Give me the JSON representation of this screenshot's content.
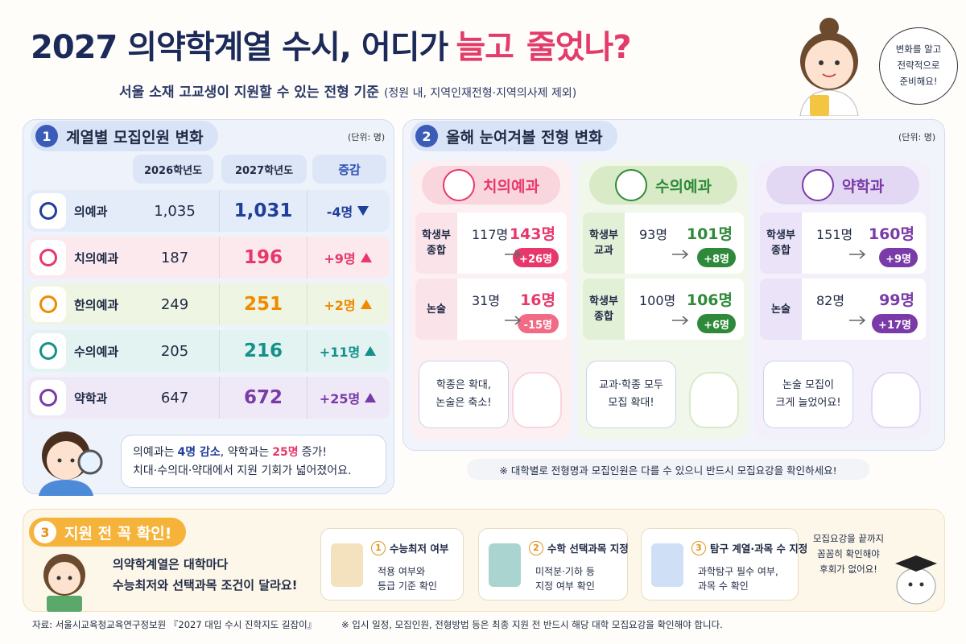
{
  "header": {
    "title_prefix": "2027 의약학계열 수시, 어디가",
    "title_up": "늘고",
    "title_down": "줄었나?",
    "subtitle": "서울 소재 고교생이 지원할 수 있는 전형 기준",
    "subtitle_note": "(정원 내, 지역인재전형·지역의사제 제외)",
    "speech": [
      "변화를 알고",
      "전략적으로",
      "준비해요!"
    ]
  },
  "section1": {
    "number": "1",
    "title": "계열별 모집인원 변화",
    "unit": "(단위: 명)",
    "columns": [
      "2026학년도",
      "2027학년도",
      "증감"
    ],
    "rows": [
      {
        "name": "의예과",
        "y2026": "1,035",
        "y2027": "1,031",
        "change": "-4명"
      },
      {
        "name": "치의예과",
        "y2026": "187",
        "y2027": "196",
        "change": "+9명"
      },
      {
        "name": "한의예과",
        "y2026": "249",
        "y2027": "251",
        "change": "+2명"
      },
      {
        "name": "수의예과",
        "y2026": "205",
        "y2027": "216",
        "change": "+11명"
      },
      {
        "name": "약학과",
        "y2026": "647",
        "y2027": "672",
        "change": "+25명"
      }
    ],
    "summary": {
      "line1": [
        "의예과는",
        "4명 감소",
        ", 약학과는",
        "25명",
        "증가!"
      ],
      "line2": "치대·수의대·약대에서 지원 기회가 넓어졌어요."
    }
  },
  "section2": {
    "number": "2",
    "title": "올해 눈여겨볼 전형 변화",
    "unit": "(단위: 명)",
    "cards": [
      {
        "name": "치의예과",
        "rows": [
          {
            "label": [
              "학생부",
              "종합"
            ],
            "from": "117명",
            "to": "143명",
            "diff": "+26명"
          },
          {
            "label": [
              "논술"
            ],
            "from": "31명",
            "to": "16명",
            "diff": "-15명"
          }
        ],
        "bubble": [
          "학종은 확대,",
          "논술은 축소!"
        ]
      },
      {
        "name": "수의예과",
        "rows": [
          {
            "label": [
              "학생부",
              "교과"
            ],
            "from": "93명",
            "to": "101명",
            "diff": "+8명"
          },
          {
            "label": [
              "학생부",
              "종합"
            ],
            "from": "100명",
            "to": "106명",
            "diff": "+6명"
          }
        ],
        "bubble": [
          "교과·학종 모두",
          "모집 확대!"
        ]
      },
      {
        "name": "약학과",
        "rows": [
          {
            "label": [
              "학생부",
              "종합"
            ],
            "from": "151명",
            "to": "160명",
            "diff": "+9명"
          },
          {
            "label": [
              "논술"
            ],
            "from": "82명",
            "to": "99명",
            "diff": "+17명"
          }
        ],
        "bubble": [
          "논술 모집이",
          "크게 늘었어요!"
        ]
      }
    ],
    "note": "※ 대학별로 전형명과 모집인원은 다를 수 있으니 반드시 모집요강을 확인하세요!"
  },
  "section3": {
    "number": "3",
    "title": "지원 전 꼭 확인!",
    "intro": [
      "의약학계열은 대학마다",
      "수능최저와 선택과목 조건이 달라요!"
    ],
    "steps": [
      {
        "num": "1",
        "title": "수능최저 여부",
        "desc": [
          "적용 여부와",
          "등급 기준 확인"
        ]
      },
      {
        "num": "2",
        "title": "수학 선택과목 지정",
        "desc": [
          "미적분·기하 등",
          "지정 여부 확인"
        ]
      },
      {
        "num": "3",
        "title": "탐구 계열·과목 수 지정",
        "desc": [
          "과학탐구 필수 여부,",
          "과목 수 확인"
        ]
      }
    ],
    "bubble": [
      "모집요강을 끝까지",
      "꼼꼼히 확인해야",
      "후회가 없어요!"
    ]
  },
  "footer": {
    "source": "자료: 서울시교육청교육연구정보원 『2027 대입 수시 진학지도 길잡이』",
    "note": "※ 입시 일정, 모집인원, 전형방법 등은 최종 지원 전 반드시 해당 대학 모집요강을 확인해야 합니다."
  }
}
